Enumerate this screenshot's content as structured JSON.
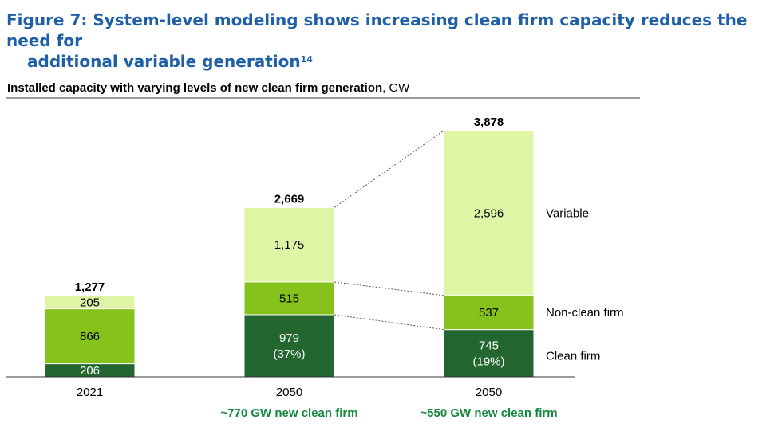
{
  "figure": {
    "title_line1": "Figure 7: System-level modeling shows increasing clean firm capacity reduces the need for",
    "title_line2": "additional variable generation",
    "title_sup": "14"
  },
  "chart_data": {
    "type": "bar",
    "stacked": true,
    "title": "Installed capacity with varying levels of new clean firm generation",
    "unit": "GW",
    "categories": [
      "2021",
      "2050",
      "2050"
    ],
    "scenario_labels": [
      "",
      "~770 GW new clean firm",
      "~550 GW new clean firm"
    ],
    "totals": [
      "1,277",
      "2,669",
      "3,878"
    ],
    "series": [
      {
        "name": "Clean firm",
        "values": [
          206,
          979,
          745
        ],
        "labels": [
          "206",
          "979\n(37%)",
          "745\n(19%)"
        ],
        "color": "#23662f"
      },
      {
        "name": "Non-clean firm",
        "values": [
          866,
          515,
          537
        ],
        "labels": [
          "866",
          "515",
          "537"
        ],
        "color": "#85c21c"
      },
      {
        "name": "Variable",
        "values": [
          205,
          1175,
          2596
        ],
        "labels": [
          "205",
          "1,175",
          "2,596"
        ],
        "color": "#dff5a6"
      }
    ],
    "legend_position": "right",
    "colors": {
      "scenario_label": "#16883f",
      "connector": "#555555"
    }
  }
}
